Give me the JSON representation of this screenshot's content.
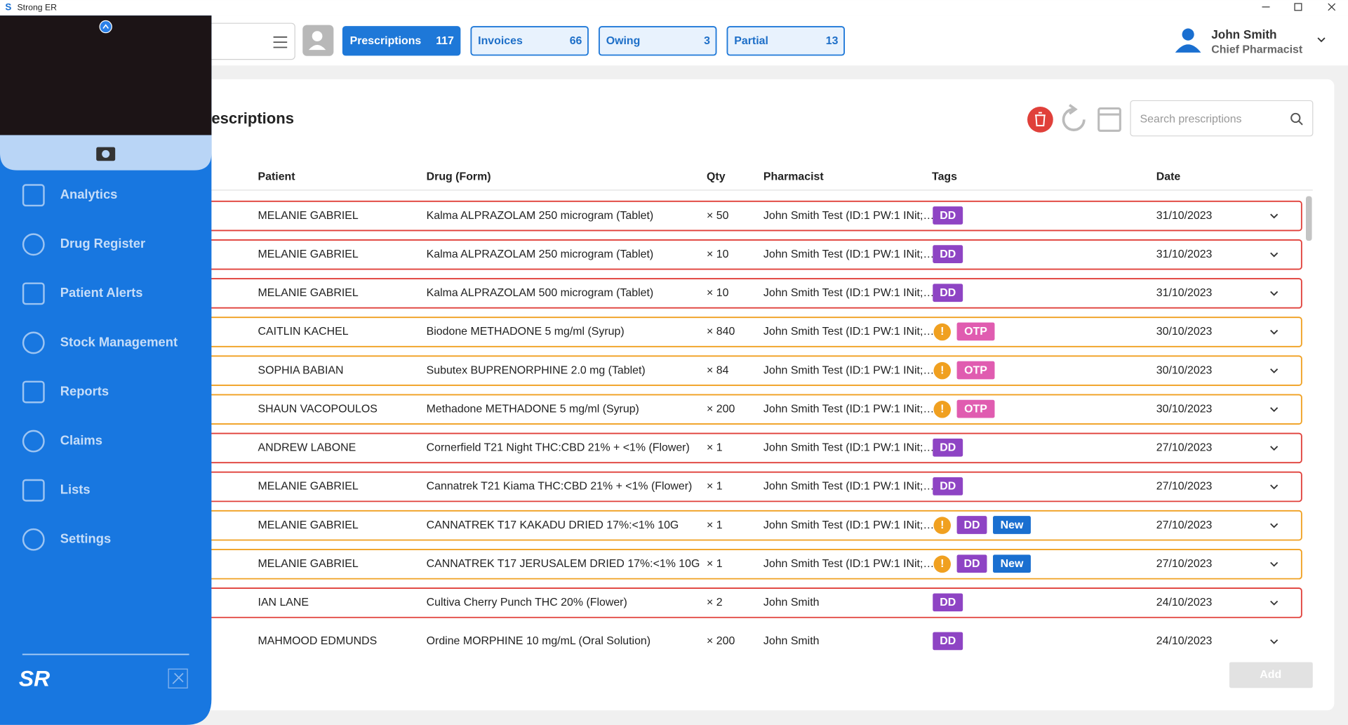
{
  "window": {
    "title": "Strong ER"
  },
  "header": {
    "tabs": [
      {
        "label": "Prescriptions",
        "count": 117
      },
      {
        "label": "Invoices",
        "count": 66
      },
      {
        "label": "Owing",
        "count": 3
      },
      {
        "label": "Partial",
        "count": 13
      }
    ],
    "user": {
      "name": "John Smith",
      "role": "Chief Pharmacist"
    }
  },
  "sidebar": {
    "menu": [
      "Analytics",
      "Drug Register",
      "Patient Alerts",
      "Stock Management",
      "Reports",
      "Claims",
      "Lists",
      "Settings"
    ]
  },
  "main": {
    "title": "escriptions",
    "search_placeholder": "Search prescriptions",
    "columns": [
      "Patient",
      "Drug (Form)",
      "Qty",
      "Pharmacist",
      "Tags",
      "Date"
    ],
    "rows": [
      {
        "patient": "MELANIE GABRIEL",
        "drug": "Kalma ALPRAZOLAM 250 microgram (Tablet)",
        "qty": "× 50",
        "pharmacist": "John Smith Test (ID:1 PW:1 INit;…",
        "alert": false,
        "tags": [
          "DD"
        ],
        "date": "31/10/2023",
        "border": "#e0403a"
      },
      {
        "patient": "MELANIE GABRIEL",
        "drug": "Kalma ALPRAZOLAM 250 microgram (Tablet)",
        "qty": "× 10",
        "pharmacist": "John Smith Test (ID:1 PW:1 INit;…",
        "alert": false,
        "tags": [
          "DD"
        ],
        "date": "31/10/2023",
        "border": "#e0403a"
      },
      {
        "patient": "MELANIE GABRIEL",
        "drug": "Kalma ALPRAZOLAM 500 microgram (Tablet)",
        "qty": "× 10",
        "pharmacist": "John Smith Test (ID:1 PW:1 INit;…",
        "alert": false,
        "tags": [
          "DD"
        ],
        "date": "31/10/2023",
        "border": "#e0403a"
      },
      {
        "patient": "CAITLIN KACHEL",
        "drug": "Biodone METHADONE 5 mg/ml (Syrup)",
        "qty": "× 840",
        "pharmacist": "John Smith Test (ID:1 PW:1 INit;…",
        "alert": true,
        "tags": [
          "OTP"
        ],
        "date": "30/10/2023",
        "border": "#f0a020"
      },
      {
        "patient": "SOPHIA BABIAN",
        "drug": "Subutex BUPRENORPHINE 2.0 mg (Tablet)",
        "qty": "× 84",
        "pharmacist": "John Smith Test (ID:1 PW:1 INit;…",
        "alert": true,
        "tags": [
          "OTP"
        ],
        "date": "30/10/2023",
        "border": "#f0a020"
      },
      {
        "patient": "SHAUN VACOPOULOS",
        "drug": "Methadone METHADONE 5 mg/ml (Syrup)",
        "qty": "× 200",
        "pharmacist": "John Smith Test (ID:1 PW:1 INit;…",
        "alert": true,
        "tags": [
          "OTP"
        ],
        "date": "30/10/2023",
        "border": "#f0a020"
      },
      {
        "patient": "ANDREW LABONE",
        "drug": "Cornerfield T21 Night THC:CBD 21% + <1% (Flower)",
        "qty": "× 1",
        "pharmacist": "John Smith Test (ID:1 PW:1 INit;…",
        "alert": false,
        "tags": [
          "DD"
        ],
        "date": "27/10/2023",
        "border": "#e0403a"
      },
      {
        "patient": "MELANIE GABRIEL",
        "drug": "Cannatrek T21 Kiama THC:CBD 21% + <1% (Flower)",
        "qty": "× 1",
        "pharmacist": "John Smith Test (ID:1 PW:1 INit;…",
        "alert": false,
        "tags": [
          "DD"
        ],
        "date": "27/10/2023",
        "border": "#e0403a"
      },
      {
        "patient": "MELANIE GABRIEL",
        "drug": "CANNATREK T17 KAKADU DRIED 17%:<1% 10G",
        "qty": "× 1",
        "pharmacist": "John Smith Test (ID:1 PW:1 INit;…",
        "alert": true,
        "tags": [
          "DD",
          "New"
        ],
        "date": "27/10/2023",
        "border": "#f0a020"
      },
      {
        "patient": "MELANIE GABRIEL",
        "drug": "CANNATREK T17 JERUSALEM DRIED 17%:<1% 10G",
        "qty": "× 1",
        "pharmacist": "John Smith Test (ID:1 PW:1 INit;…",
        "alert": true,
        "tags": [
          "DD",
          "New"
        ],
        "date": "27/10/2023",
        "border": "#f0a020"
      },
      {
        "patient": "IAN LANE",
        "drug": "Cultiva Cherry Punch  THC 20% (Flower)",
        "qty": "× 2",
        "pharmacist": "John Smith",
        "alert": false,
        "tags": [
          "DD"
        ],
        "date": "24/10/2023",
        "border": "#e0403a"
      },
      {
        "patient": "MAHMOOD EDMUNDS",
        "drug": "Ordine MORPHINE 10 mg/mL (Oral Solution)",
        "qty": "× 200",
        "pharmacist": "John Smith",
        "alert": false,
        "tags": [
          "DD"
        ],
        "date": "24/10/2023"
      }
    ],
    "add_button": "Add"
  }
}
